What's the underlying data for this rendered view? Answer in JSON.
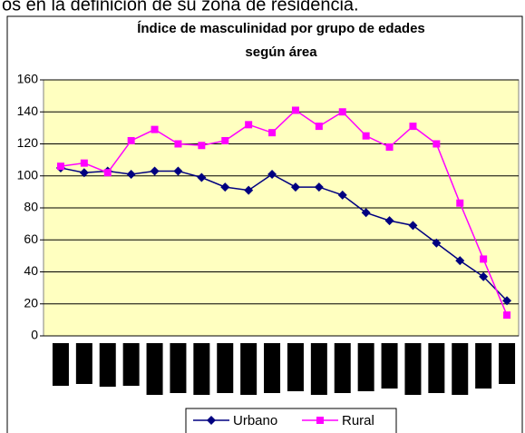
{
  "page_text": "os en la definición de su zona de residencia.",
  "chart_data": {
    "type": "line",
    "title": [
      "Índice de masculinidad por grupo de edades",
      "según área"
    ],
    "categories": [
      null,
      null,
      null,
      null,
      null,
      null,
      null,
      null,
      null,
      null,
      null,
      null,
      null,
      null,
      null,
      null,
      null,
      null,
      null,
      null
    ],
    "series": [
      {
        "name": "Urbano",
        "color": "#000080",
        "marker": "diamond",
        "values": [
          105,
          102,
          103,
          101,
          103,
          103,
          99,
          93,
          91,
          101,
          93,
          93,
          88,
          77,
          72,
          69,
          58,
          47,
          37,
          22
        ]
      },
      {
        "name": "Rural",
        "color": "#ff00ff",
        "marker": "square",
        "values": [
          106,
          108,
          102,
          122,
          129,
          120,
          119,
          122,
          132,
          127,
          141,
          131,
          140,
          125,
          118,
          131,
          120,
          83,
          48,
          13
        ]
      }
    ],
    "ylim": [
      0,
      160
    ],
    "yticks": [
      0,
      20,
      40,
      60,
      80,
      100,
      120,
      140,
      160
    ],
    "grid": true,
    "legend": "bottom"
  }
}
